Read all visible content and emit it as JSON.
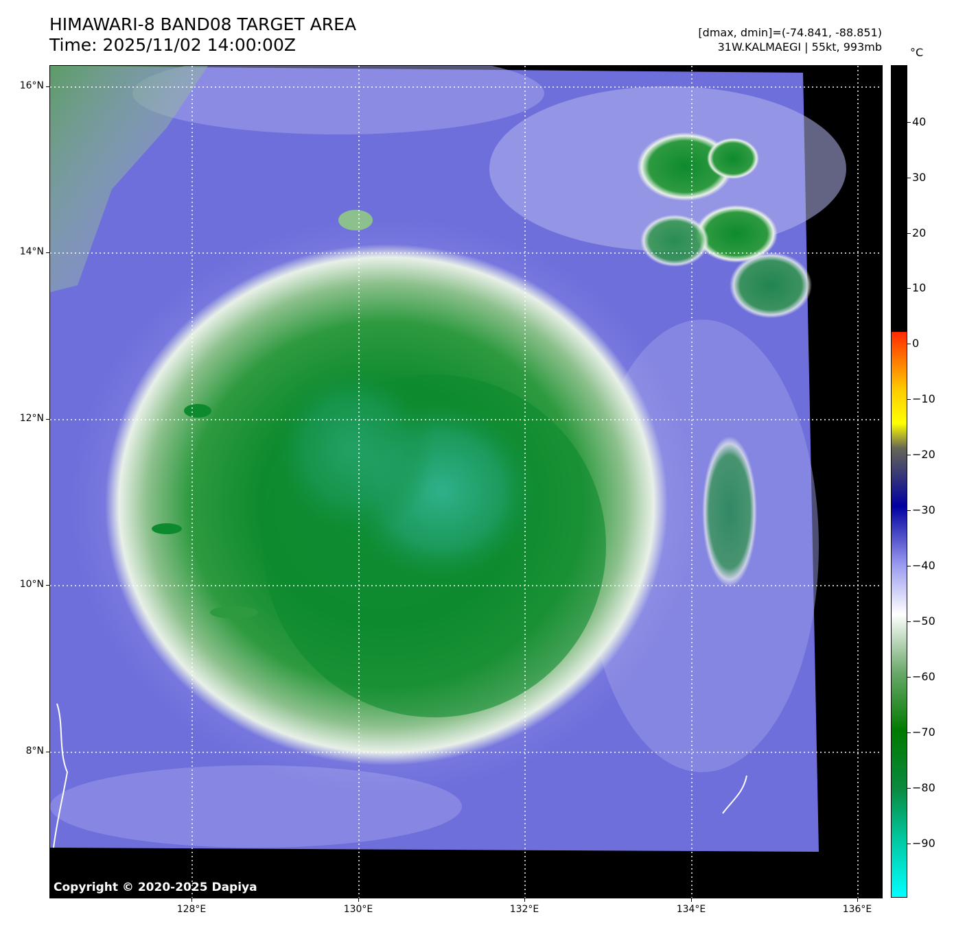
{
  "header": {
    "title_line1": "HIMAWARI-8 BAND08 TARGET AREA",
    "title_line2": "Time: 2025/11/02 14:00:00Z",
    "info_line1": "[dmax, dmin]=(-74.841, -88.851)",
    "info_line2": "31W.KALMAEGI | 55kt, 993mb"
  },
  "axes": {
    "lat_labels": [
      "16°N",
      "14°N",
      "12°N",
      "10°N",
      "8°N"
    ],
    "lon_labels": [
      "128°E",
      "130°E",
      "132°E",
      "134°E",
      "136°E"
    ],
    "grid_style": "dotted white"
  },
  "colorbar": {
    "unit": "°C",
    "labels": [
      "40",
      "30",
      "20",
      "10",
      "0",
      "−10",
      "−20",
      "−30",
      "−40",
      "−50",
      "−60",
      "−70",
      "−80",
      "−90"
    ],
    "colors": {
      "warm": "#000000",
      "zero": "#ff2a00",
      "m10": "#ffcc00",
      "m15": "#ffff00",
      "m20": "#666655",
      "m30": "#0000a0",
      "m40": "#9a9af0",
      "m50": "#ffffff",
      "m60": "#6aa86a",
      "m70": "#007a00",
      "m80": "#0a8a40",
      "m90": "#00c8a0",
      "m100": "#00ffff"
    }
  },
  "imagery": {
    "background_color": "#6f6fdc",
    "storm_colors": [
      "#0e8a2e",
      "#12903c",
      "#22a060",
      "#8cc08c",
      "#e8f0e8"
    ],
    "center_lat": "11.0",
    "center_lon": "131.0"
  },
  "footer": {
    "copyright": "Copyright © 2020-2025 Dapiya"
  }
}
